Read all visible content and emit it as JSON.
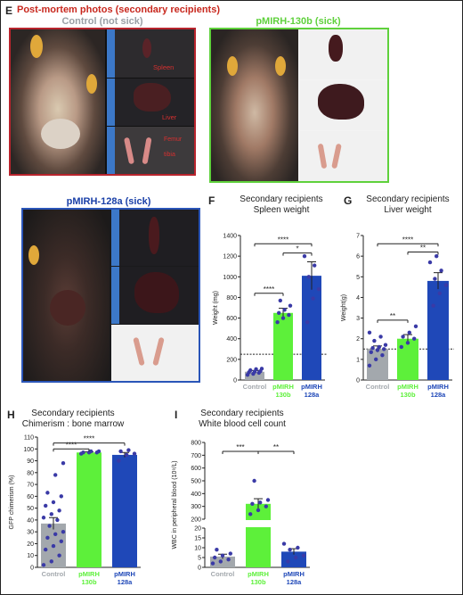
{
  "panels": {
    "e": {
      "letter": "E",
      "title": "Post-mortem photos (secondary recipients)",
      "photo_labels": [
        {
          "label": "Control (not sick)",
          "color": "#9aa0a6"
        },
        {
          "label": "pMIRH-130b (sick)",
          "color": "#5fd13c"
        },
        {
          "label": "pMIRH-128a (sick)",
          "color": "#1a40a8"
        }
      ],
      "organ_labels": [
        "Spleen",
        "Liver",
        "Femur",
        "tibia"
      ]
    },
    "f": {
      "letter": "F"
    },
    "g": {
      "letter": "G"
    },
    "h": {
      "letter": "H"
    },
    "i": {
      "letter": "I"
    }
  },
  "colors": {
    "control": "#a3a8ad",
    "pmirh130b": "#5df03a",
    "pmirh128a": "#1f48b8",
    "points": "#3a3aa6",
    "panel_title_red": "#c8281e"
  },
  "chart_data": [
    {
      "id": "F",
      "type": "bar",
      "title": "Secondary recipients",
      "subtitle": "Spleen weight",
      "ylabel": "Weight (mg)",
      "ylim": [
        0,
        1400
      ],
      "yticks": [
        0,
        200,
        400,
        600,
        800,
        1000,
        1200,
        1400
      ],
      "categories": [
        "Control",
        "pMIRH 130b",
        "pMIRH 128a"
      ],
      "category_lines": [
        [
          "Control"
        ],
        [
          "pMIRH",
          "130b"
        ],
        [
          "pMIRH",
          "128a"
        ]
      ],
      "category_colors": [
        "#a3a8ad",
        "#5df03a",
        "#1f48b8"
      ],
      "values": [
        80,
        650,
        1010
      ],
      "errors": [
        12,
        45,
        135
      ],
      "points": [
        [
          50,
          60,
          70,
          75,
          80,
          85,
          95,
          105,
          110
        ],
        [
          560,
          600,
          630,
          650,
          680,
          720,
          770
        ],
        [
          560,
          790,
          880,
          1000,
          1110,
          1200
        ]
      ],
      "reference_line": 250,
      "significance": [
        {
          "from": 0,
          "to": 2,
          "label": "****",
          "y": 1320
        },
        {
          "from": 1,
          "to": 2,
          "label": "*",
          "y": 1230
        },
        {
          "from": 0,
          "to": 1,
          "label": "****",
          "y": 840
        }
      ]
    },
    {
      "id": "G",
      "type": "bar",
      "title": "Secondary recipients",
      "subtitle": "Liver weight",
      "ylabel": "Weight(g)",
      "ylim": [
        0,
        7
      ],
      "yticks": [
        0,
        1,
        2,
        3,
        4,
        5,
        6,
        7
      ],
      "categories": [
        "Control",
        "pMIRH 130b",
        "pMIRH 128a"
      ],
      "category_lines": [
        [
          "Control"
        ],
        [
          "pMIRH",
          "130b"
        ],
        [
          "pMIRH",
          "128a"
        ]
      ],
      "category_colors": [
        "#a3a8ad",
        "#5df03a",
        "#1f48b8"
      ],
      "values": [
        1.5,
        2.0,
        4.8
      ],
      "errors": [
        0.15,
        0.2,
        0.4
      ],
      "points": [
        [
          0.7,
          1.0,
          1.2,
          1.35,
          1.45,
          1.5,
          1.55,
          1.6,
          1.7,
          1.9,
          2.1,
          2.3
        ],
        [
          1.6,
          1.8,
          2.0,
          2.1,
          2.3,
          2.6
        ],
        [
          3.6,
          4.2,
          4.6,
          4.9,
          5.3,
          5.7,
          6.0
        ]
      ],
      "reference_line": 1.5,
      "significance": [
        {
          "from": 0,
          "to": 2,
          "label": "****",
          "y": 6.6
        },
        {
          "from": 1,
          "to": 2,
          "label": "**",
          "y": 6.2
        },
        {
          "from": 0,
          "to": 1,
          "label": "**",
          "y": 2.9
        }
      ]
    },
    {
      "id": "H",
      "type": "bar",
      "title": "Secondary recipients",
      "subtitle": "Chimerism : bone marrow",
      "ylabel": "GFP chimerism (%)",
      "ylim": [
        0,
        110
      ],
      "yticks": [
        0,
        10,
        20,
        30,
        40,
        50,
        60,
        70,
        80,
        90,
        100,
        110
      ],
      "categories": [
        "Control",
        "pMIRH 130b",
        "pMIRH 128a"
      ],
      "category_lines": [
        [
          "Control"
        ],
        [
          "pMIRH",
          "130b"
        ],
        [
          "pMIRH",
          "128a"
        ]
      ],
      "category_colors": [
        "#a3a8ad",
        "#5df03a",
        "#1f48b8"
      ],
      "values": [
        37,
        97,
        95
      ],
      "errors": [
        5,
        0.5,
        2
      ],
      "points": [
        [
          2,
          5,
          10,
          15,
          18,
          22,
          25,
          28,
          30,
          35,
          40,
          42,
          45,
          48,
          52,
          55,
          60,
          63,
          78,
          88
        ],
        [
          96,
          97,
          97,
          97,
          98,
          98
        ],
        [
          90,
          95,
          96,
          98,
          99
        ]
      ],
      "significance": [
        {
          "from": 0,
          "to": 2,
          "label": "****",
          "y": 105
        },
        {
          "from": 0,
          "to": 1,
          "label": "****",
          "y": 100
        }
      ]
    },
    {
      "id": "I",
      "type": "bar",
      "title": "Secondary recipients",
      "subtitle": "White blood cell count",
      "ylabel": "WBC in peripheral blood (10⁹/L)",
      "axis_break": true,
      "segments": [
        {
          "range": [
            0,
            20
          ],
          "ticks": [
            0,
            5,
            10,
            15,
            20
          ]
        },
        {
          "range": [
            200,
            800
          ],
          "ticks": [
            200,
            300,
            400,
            500,
            600,
            700,
            800
          ]
        }
      ],
      "categories": [
        "Control",
        "pMIRH 130b",
        "pMIRH 128a"
      ],
      "category_lines": [
        [
          "Control"
        ],
        [
          "pMIRH",
          "130b"
        ],
        [
          "pMIRH",
          "128a"
        ]
      ],
      "category_colors": [
        "#a3a8ad",
        "#5df03a",
        "#1f48b8"
      ],
      "values": [
        5.5,
        320,
        8
      ],
      "errors": [
        1.2,
        40,
        1.5
      ],
      "points": [
        [
          2,
          3,
          4,
          5,
          6,
          7,
          9
        ],
        [
          240,
          270,
          300,
          320,
          330,
          350,
          500
        ],
        [
          3,
          5,
          6,
          9,
          10,
          12
        ]
      ],
      "significance": [
        {
          "from": 0,
          "to": 1,
          "label": "***",
          "y": 730
        },
        {
          "from": 1,
          "to": 2,
          "label": "**",
          "y": 730
        }
      ]
    }
  ]
}
